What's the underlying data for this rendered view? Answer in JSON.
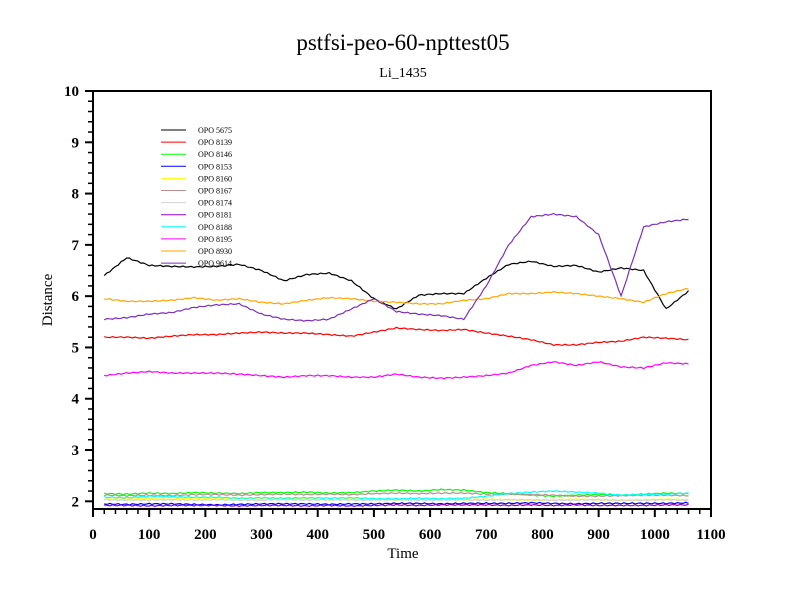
{
  "chart_data": {
    "type": "line",
    "title": "pstfsi-peo-60-npttest05",
    "subtitle": "Li_1435",
    "xlabel": "Time",
    "ylabel": "Distance",
    "xlim": [
      0,
      1100
    ],
    "ylim": [
      1.85,
      10
    ],
    "xticks": [
      "0",
      "100",
      "200",
      "300",
      "400",
      "500",
      "600",
      "700",
      "800",
      "900",
      "1000",
      "1100"
    ],
    "yticks": [
      "2",
      "3",
      "4",
      "5",
      "6",
      "7",
      "8",
      "9",
      "10"
    ],
    "legend_position": "top-left",
    "x": [
      20,
      60,
      100,
      140,
      180,
      220,
      260,
      300,
      340,
      380,
      420,
      460,
      500,
      540,
      580,
      620,
      660,
      700,
      740,
      780,
      820,
      860,
      900,
      940,
      980,
      1020,
      1060
    ],
    "series": [
      {
        "name": "OPO 5675",
        "color": "#000000",
        "values": [
          6.4,
          6.75,
          6.6,
          6.58,
          6.57,
          6.58,
          6.62,
          6.5,
          6.3,
          6.42,
          6.45,
          6.3,
          5.95,
          5.75,
          6.02,
          6.05,
          6.05,
          6.35,
          6.62,
          6.68,
          6.58,
          6.6,
          6.47,
          6.55,
          6.5,
          5.75,
          6.1
        ]
      },
      {
        "name": "OPO 8139",
        "color": "#ff0000",
        "values": [
          5.2,
          5.2,
          5.18,
          5.22,
          5.25,
          5.25,
          5.28,
          5.3,
          5.28,
          5.28,
          5.25,
          5.22,
          5.3,
          5.38,
          5.35,
          5.33,
          5.35,
          5.28,
          5.22,
          5.15,
          5.05,
          5.05,
          5.1,
          5.12,
          5.2,
          5.18,
          5.15
        ]
      },
      {
        "name": "OPO 8146",
        "color": "#00ff00",
        "values": [
          2.15,
          2.14,
          2.16,
          2.15,
          2.17,
          2.16,
          2.15,
          2.17,
          2.17,
          2.18,
          2.16,
          2.17,
          2.2,
          2.22,
          2.2,
          2.23,
          2.22,
          2.17,
          2.15,
          2.12,
          2.1,
          2.12,
          2.13,
          2.12,
          2.14,
          2.16,
          2.15
        ]
      },
      {
        "name": "OPO 8153",
        "color": "#0000ff",
        "values": [
          1.95,
          1.94,
          1.95,
          1.95,
          1.94,
          1.93,
          1.94,
          1.95,
          1.95,
          1.95,
          1.94,
          1.95,
          1.95,
          1.96,
          1.96,
          1.95,
          1.96,
          1.96,
          1.96,
          1.97,
          1.96,
          1.95,
          1.96,
          1.96,
          1.96,
          1.96,
          1.97
        ]
      },
      {
        "name": "OPO 8160",
        "color": "#ffff00",
        "values": [
          2.04,
          2.05,
          2.05,
          2.04,
          2.06,
          2.05,
          2.06,
          2.04,
          2.05,
          2.05,
          2.03,
          2.05,
          2.04,
          2.03,
          2.04,
          2.04,
          2.03,
          2.04,
          2.03,
          2.02,
          2.03,
          2.04,
          2.03,
          2.02,
          2.03,
          2.04,
          2.03
        ]
      },
      {
        "name": "OPO 8167",
        "color": "#bc8f8f",
        "values": [
          2.12,
          2.11,
          2.12,
          2.11,
          2.13,
          2.13,
          2.12,
          2.13,
          2.14,
          2.13,
          2.14,
          2.13,
          2.15,
          2.16,
          2.15,
          2.16,
          2.16,
          2.14,
          2.14,
          2.13,
          2.12,
          2.1,
          2.1,
          2.11,
          2.12,
          2.12,
          2.11
        ]
      },
      {
        "name": "OPO 8174",
        "color": "#d3d3d3",
        "values": [
          2.03,
          2.02,
          2.02,
          2.03,
          2.02,
          2.03,
          2.02,
          2.02,
          2.03,
          2.02,
          2.03,
          2.02,
          2.02,
          2.03,
          2.02,
          2.02,
          2.03,
          2.02,
          2.03,
          2.03,
          2.02,
          2.02,
          2.03,
          2.02,
          2.02,
          2.03,
          2.02
        ]
      },
      {
        "name": "OPO 8181",
        "color": "#9400d3",
        "values": [
          1.92,
          1.92,
          1.91,
          1.92,
          1.92,
          1.92,
          1.91,
          1.92,
          1.92,
          1.91,
          1.92,
          1.91,
          1.92,
          1.93,
          1.92,
          1.93,
          1.93,
          1.93,
          1.92,
          1.93,
          1.92,
          1.93,
          1.92,
          1.92,
          1.92,
          1.93,
          1.93
        ]
      },
      {
        "name": "OPO 8188",
        "color": "#00ffff",
        "values": [
          2.08,
          2.07,
          2.1,
          2.09,
          2.08,
          2.08,
          2.06,
          2.07,
          2.06,
          2.07,
          2.06,
          2.07,
          2.05,
          2.05,
          2.06,
          2.05,
          2.06,
          2.1,
          2.15,
          2.18,
          2.2,
          2.18,
          2.16,
          2.12,
          2.13,
          2.14,
          2.16
        ]
      },
      {
        "name": "OPO 8195",
        "color": "#ff00ff",
        "values": [
          4.45,
          4.5,
          4.53,
          4.5,
          4.5,
          4.5,
          4.48,
          4.45,
          4.42,
          4.45,
          4.45,
          4.42,
          4.42,
          4.48,
          4.42,
          4.4,
          4.42,
          4.45,
          4.5,
          4.65,
          4.72,
          4.65,
          4.72,
          4.62,
          4.6,
          4.7,
          4.68
        ]
      },
      {
        "name": "OPO 8930",
        "color": "#ffa500",
        "values": [
          5.95,
          5.9,
          5.9,
          5.92,
          5.97,
          5.92,
          5.95,
          5.88,
          5.85,
          5.92,
          5.97,
          5.95,
          5.9,
          5.88,
          5.85,
          5.85,
          5.92,
          5.95,
          6.05,
          6.05,
          6.08,
          6.05,
          6.0,
          5.95,
          5.88,
          6.05,
          6.15
        ]
      },
      {
        "name": "OPO 9614",
        "color": "#7b2fbe",
        "values": [
          5.55,
          5.58,
          5.65,
          5.68,
          5.78,
          5.83,
          5.85,
          5.65,
          5.55,
          5.52,
          5.55,
          5.75,
          5.95,
          5.7,
          5.65,
          5.62,
          5.55,
          6.2,
          7.0,
          7.55,
          7.6,
          7.55,
          7.2,
          6.0,
          7.35,
          7.45,
          7.5
        ]
      }
    ]
  }
}
